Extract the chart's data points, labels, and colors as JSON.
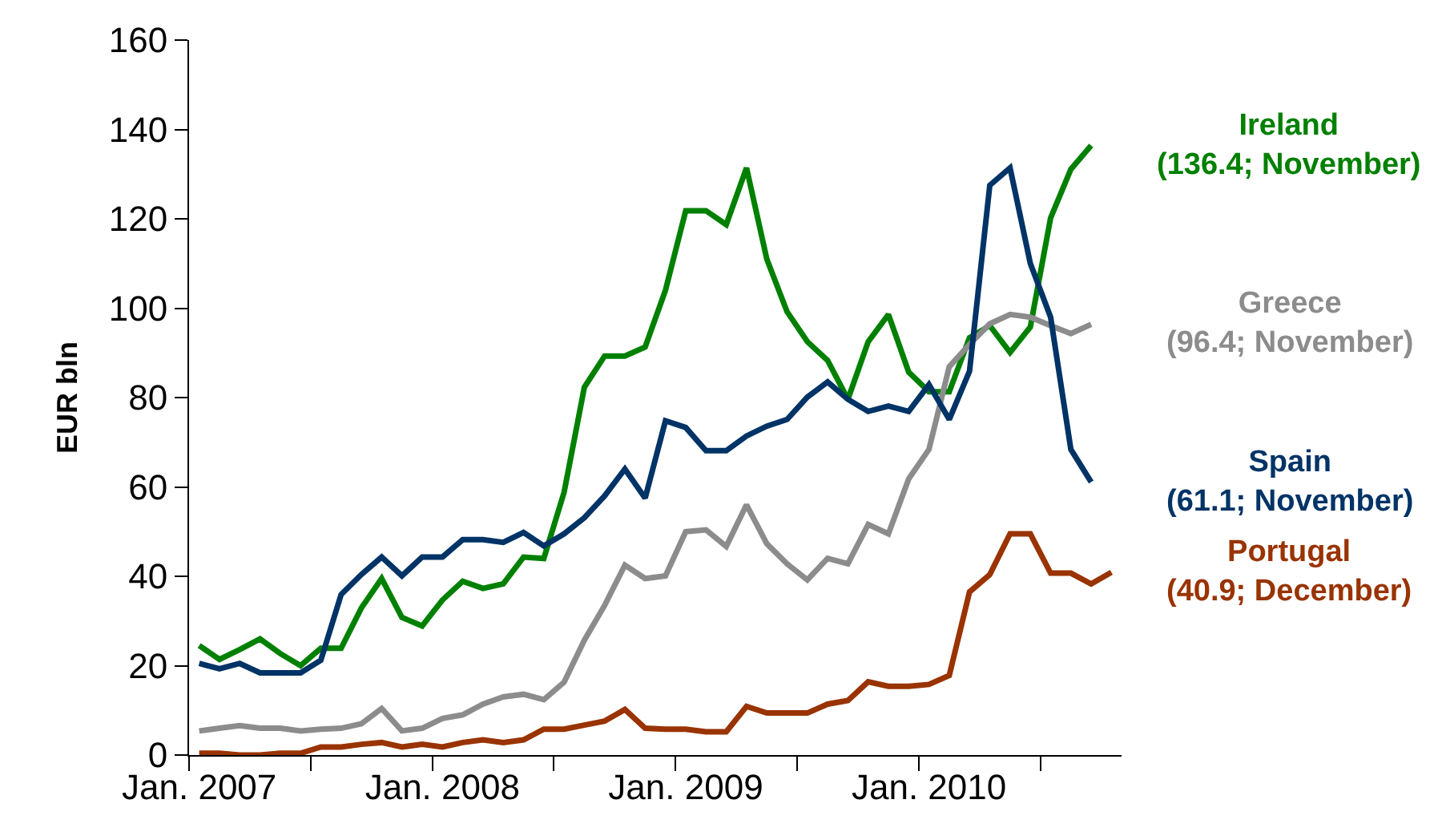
{
  "chart_data": {
    "type": "line",
    "ylabel": "EUR bln",
    "ylim": [
      0,
      160
    ],
    "yticks": [
      0,
      20,
      40,
      60,
      80,
      100,
      120,
      140,
      160
    ],
    "categories": [
      "Jan. 2007",
      null,
      null,
      null,
      null,
      null,
      null,
      null,
      null,
      null,
      null,
      null,
      "Jan. 2008",
      null,
      null,
      null,
      null,
      null,
      null,
      null,
      null,
      null,
      null,
      null,
      "Jan. 2009",
      null,
      null,
      null,
      null,
      null,
      null,
      null,
      null,
      null,
      null,
      null,
      "Jan. 2010",
      null,
      null,
      null,
      null,
      null,
      null,
      null,
      null,
      null
    ],
    "series": [
      {
        "name": "Ireland",
        "color": "#008000",
        "values": [
          24.5,
          21.4,
          23.6,
          26.0,
          22.7,
          20.0,
          23.9,
          23.9,
          32.9,
          39.5,
          30.8,
          28.9,
          34.7,
          38.9,
          37.3,
          38.3,
          44.3,
          44.0,
          58.8,
          82.3,
          89.3,
          89.3,
          91.3,
          104,
          121.8,
          121.8,
          118.7,
          131.4,
          111,
          99.2,
          92.5,
          88.3,
          79.6,
          92.5,
          98.6,
          85.7,
          81.3,
          81.3,
          93.4,
          96.1,
          90.1,
          95.8,
          120.2,
          131.1,
          136.4,
          null
        ]
      },
      {
        "name": "Greece",
        "color": "#8c8c8c",
        "values": [
          5.4,
          6.0,
          6.6,
          6.0,
          6.0,
          5.4,
          5.8,
          6.0,
          7.0,
          10.4,
          5.4,
          6.0,
          8.2,
          9.0,
          11.4,
          13.0,
          13.6,
          12.4,
          16.3,
          25.7,
          33.5,
          42.5,
          39.5,
          40.1,
          50,
          50.4,
          46.7,
          56,
          47.3,
          42.8,
          39.2,
          44,
          42.8,
          51.6,
          49.5,
          61.8,
          68.4,
          86.9,
          91.9,
          96.5,
          98.6,
          98,
          96.1,
          94.3,
          96.4,
          null
        ]
      },
      {
        "name": "Spain",
        "color": "#003366",
        "values": [
          20.5,
          19.3,
          20.5,
          18.4,
          18.4,
          18.4,
          21.2,
          35.9,
          40.4,
          44.3,
          40.1,
          44.3,
          44.3,
          48.2,
          48.2,
          47.6,
          49.8,
          46.8,
          49.5,
          53.1,
          58,
          64,
          57.5,
          74.8,
          73.3,
          68.1,
          68.1,
          71.4,
          73.6,
          75.1,
          80.1,
          83.5,
          79.6,
          76.9,
          78.1,
          76.9,
          82.9,
          75.1,
          85.9,
          127.5,
          131.4,
          110,
          98,
          68.4,
          61.1,
          null
        ]
      },
      {
        "name": "Portugal",
        "color": "#993300",
        "values": [
          0.4,
          0.4,
          0,
          0,
          0.4,
          0.4,
          1.8,
          1.8,
          2.4,
          2.8,
          1.8,
          2.4,
          1.8,
          2.8,
          3.4,
          2.8,
          3.4,
          5.8,
          5.8,
          6.7,
          7.6,
          10.2,
          6,
          5.8,
          5.8,
          5.2,
          5.2,
          10.9,
          9.4,
          9.4,
          9.4,
          11.4,
          12.2,
          16.4,
          15.4,
          15.4,
          15.8,
          17.8,
          36.5,
          40.4,
          49.5,
          49.5,
          40.7,
          40.7,
          38.3,
          40.9
        ]
      }
    ],
    "annotations": [
      "(136.4; November)",
      "(96.4; November)",
      "(61.1; November)",
      "(40.9; December)"
    ]
  }
}
